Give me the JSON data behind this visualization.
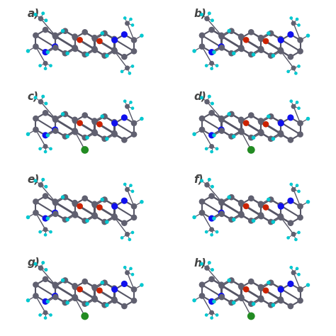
{
  "background": "#ffffff",
  "labels": [
    "a)",
    "b)",
    "c)",
    "d)",
    "e)",
    "f)",
    "g)",
    "h)"
  ],
  "label_fontsize": 11,
  "label_color": "#444444",
  "ncols": 2,
  "nrows": 4,
  "atom_colors": {
    "C": "#606070",
    "H": "#00c8d0",
    "N": "#1010ee",
    "O": "#cc2200",
    "S": "#228B22"
  },
  "bond_color": "#555565",
  "panels": [
    {
      "label": "a)",
      "show_S": false,
      "N_left": true,
      "N_right": true,
      "flip": false
    },
    {
      "label": "b)",
      "show_S": false,
      "N_left": true,
      "N_right": true,
      "flip": false
    },
    {
      "label": "c)",
      "show_S": true,
      "N_left": true,
      "N_right": true,
      "flip": false
    },
    {
      "label": "d)",
      "show_S": true,
      "N_left": true,
      "N_right": true,
      "flip": false
    },
    {
      "label": "e)",
      "show_S": false,
      "N_left": true,
      "N_right": true,
      "flip": false
    },
    {
      "label": "f)",
      "show_S": false,
      "N_left": true,
      "N_right": true,
      "flip": false
    },
    {
      "label": "g)",
      "show_S": true,
      "N_left": true,
      "N_right": true,
      "flip": false
    },
    {
      "label": "h)",
      "show_S": true,
      "N_left": true,
      "N_right": true,
      "flip": false
    }
  ]
}
